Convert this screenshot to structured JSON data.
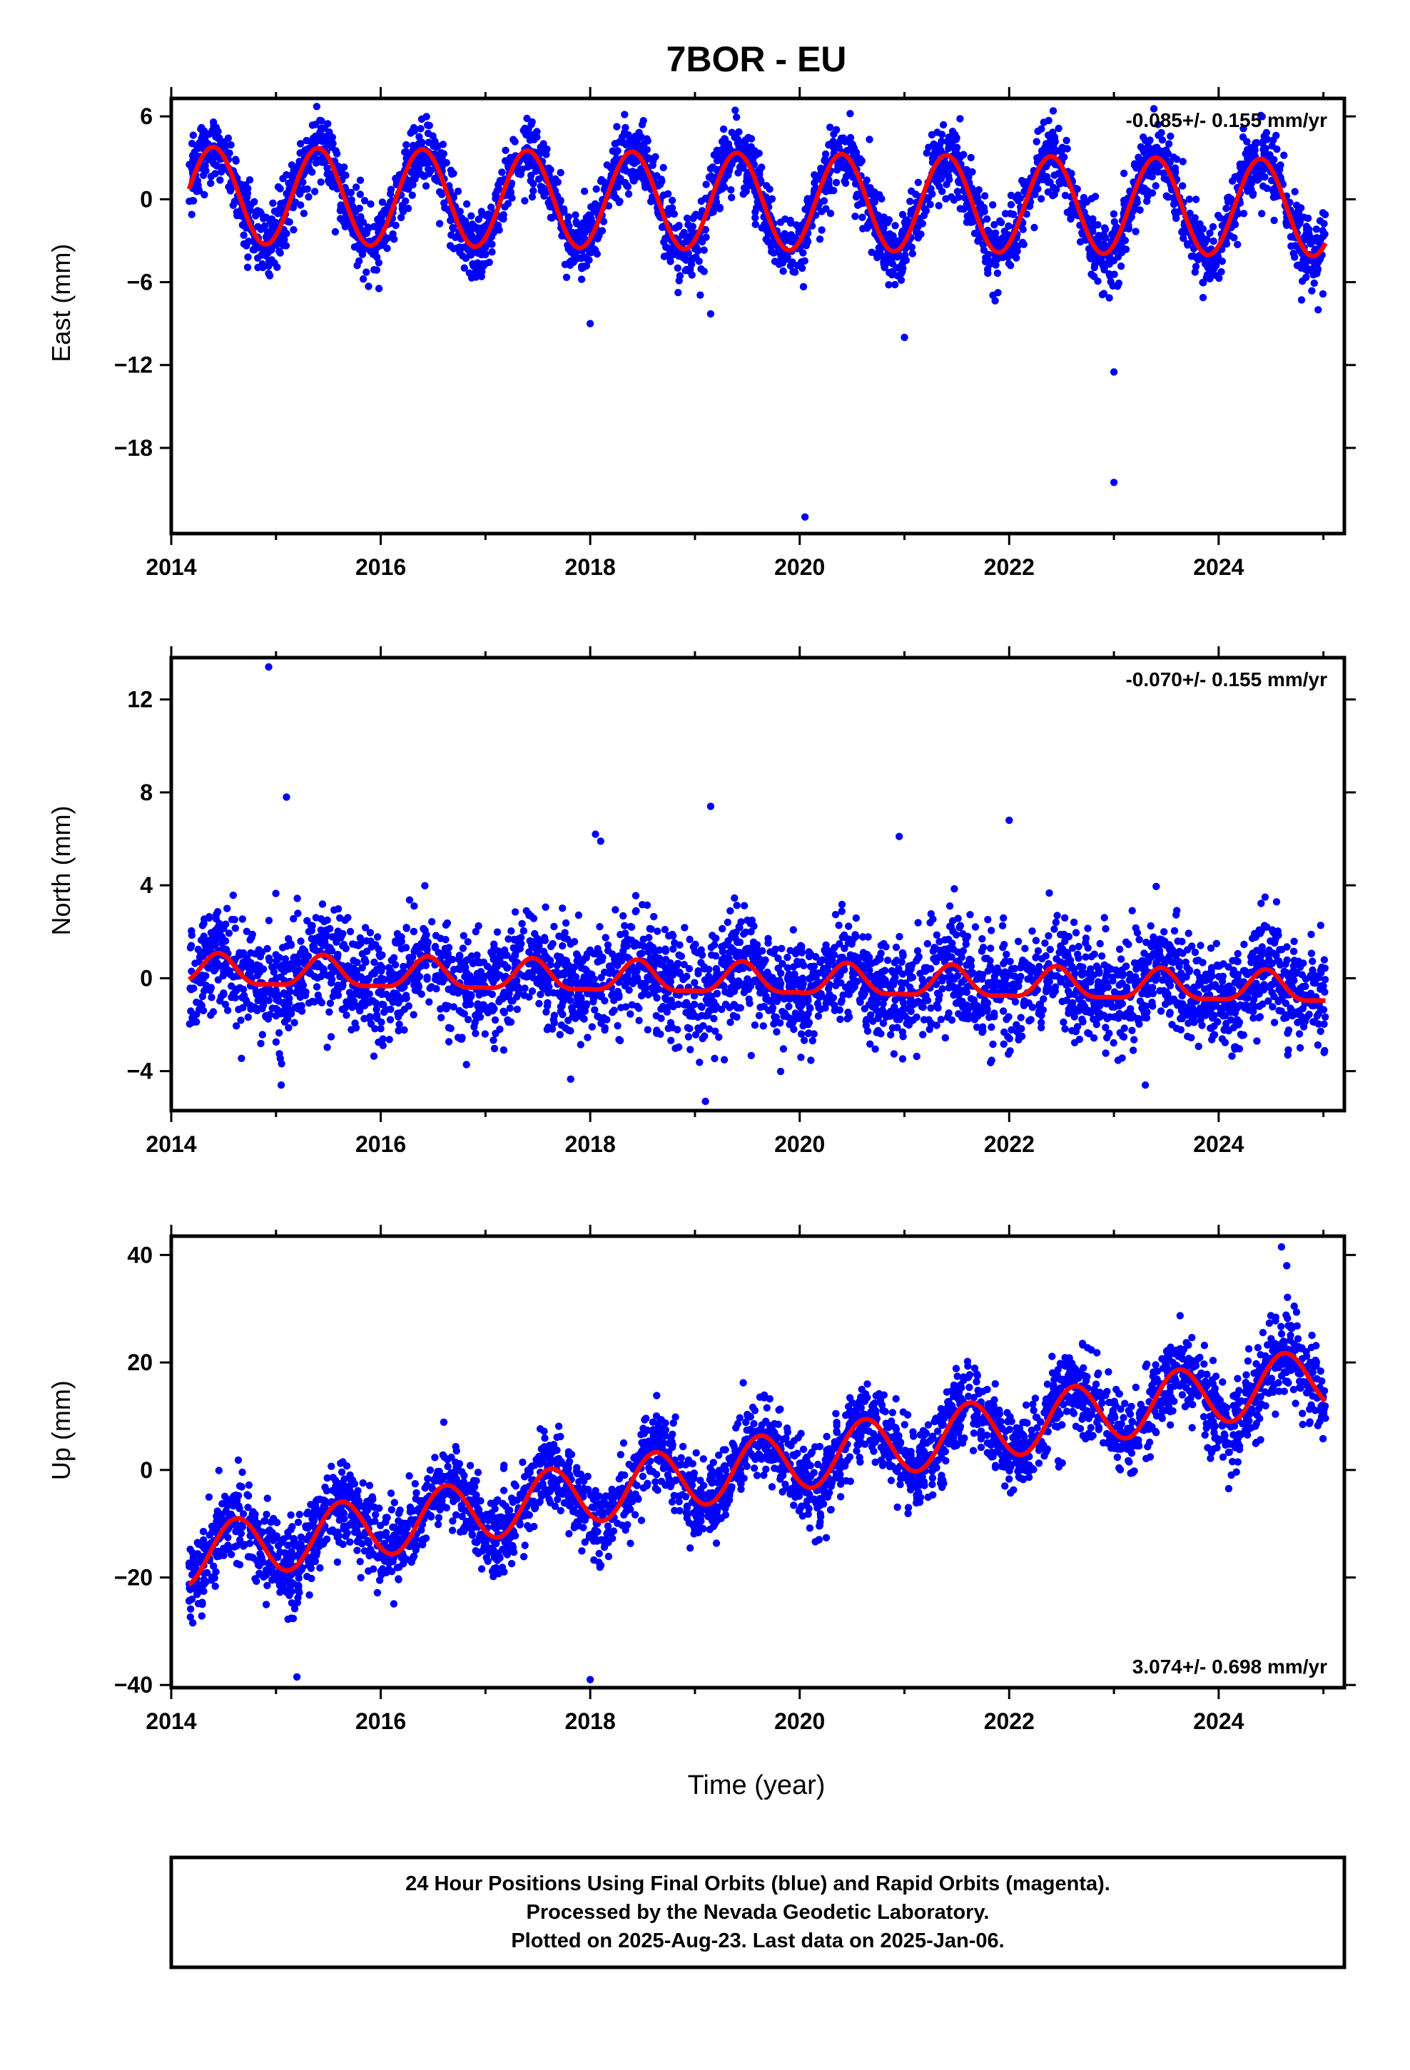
{
  "title": "7BOR - EU",
  "xlabel": "Time (year)",
  "footer": {
    "line1": "24 Hour Positions Using Final Orbits (blue) and Rapid Orbits (magenta).",
    "line2": "Processed by the Nevada Geodetic Laboratory.",
    "line3": "Plotted on 2025-Aug-23. Last data on 2025-Jan-06."
  },
  "colors": {
    "points": "#0000ff",
    "model": "#ff0000",
    "frame": "#000000"
  },
  "chart_data": [
    {
      "type": "scatter",
      "ylabel": "East (mm)",
      "rate_text": "-0.085+/- 0.155 mm/yr",
      "xlim": [
        2014.0,
        2025.2
      ],
      "ylim": [
        -24.2,
        7.3
      ],
      "xticks": [
        2014,
        2016,
        2018,
        2020,
        2022,
        2024
      ],
      "yticks": [
        6,
        0,
        -6,
        -12,
        -18
      ],
      "ytick_labels": [
        "6",
        "0",
        "−6",
        "−12",
        "−18"
      ],
      "model": {
        "offset": 0.3,
        "trend": -0.085,
        "amplitude": 3.5,
        "peak_phase": 0.4,
        "t0": 2014.17,
        "t1": 2025.02
      },
      "scatter": {
        "count": 3400,
        "noise_sd": 1.25
      },
      "outliers": [
        [
          2018.0,
          -9.0
        ],
        [
          2020.05,
          -23.0
        ],
        [
          2021.0,
          -10.0
        ],
        [
          2023.0,
          -12.5
        ],
        [
          2023.0,
          -20.5
        ],
        [
          2024.95,
          -8.0
        ],
        [
          2019.15,
          -8.3
        ]
      ]
    },
    {
      "type": "scatter",
      "ylabel": "North (mm)",
      "rate_text": "-0.070+/- 0.155 mm/yr",
      "xlim": [
        2014.0,
        2025.2
      ],
      "ylim": [
        -5.7,
        13.8
      ],
      "xticks": [
        2014,
        2016,
        2018,
        2020,
        2022,
        2024
      ],
      "yticks": [
        12,
        8,
        4,
        0,
        -4
      ],
      "ytick_labels": [
        "12",
        "8",
        "4",
        "0",
        "−4"
      ],
      "model": {
        "offset": 0.25,
        "trend": -0.07,
        "amplitude": 0.65,
        "peak_phase": 0.45,
        "semiannual": 0.2,
        "t0": 2014.17,
        "t1": 2025.02
      },
      "scatter": {
        "count": 3400,
        "noise_sd": 1.15
      },
      "outliers": [
        [
          2014.93,
          13.4
        ],
        [
          2015.1,
          7.8
        ],
        [
          2019.15,
          7.4
        ],
        [
          2020.95,
          6.1
        ],
        [
          2022.0,
          6.8
        ],
        [
          2018.05,
          6.2
        ],
        [
          2018.1,
          5.9
        ],
        [
          2023.3,
          -4.6
        ],
        [
          2015.05,
          -4.6
        ],
        [
          2019.1,
          -5.3
        ]
      ]
    },
    {
      "type": "scatter",
      "ylabel": "Up (mm)",
      "rate_text": "3.074+/- 0.698 mm/yr",
      "xlim": [
        2014.0,
        2025.2
      ],
      "ylim": [
        -40.5,
        43.5
      ],
      "xticks": [
        2014,
        2016,
        2018,
        2020,
        2022,
        2024
      ],
      "yticks": [
        40,
        20,
        0,
        -20,
        -40
      ],
      "ytick_labels": [
        "40",
        "20",
        "0",
        "−20",
        "−40"
      ],
      "model": {
        "offset": -16.0,
        "trend": 3.074,
        "amplitude": 5.6,
        "peak_phase": 0.62,
        "t0": 2014.17,
        "t1": 2025.02
      },
      "scatter": {
        "count": 3400,
        "noise_sd": 3.8
      },
      "outliers": [
        [
          2018.0,
          -39.0
        ],
        [
          2015.2,
          -38.5
        ],
        [
          2024.6,
          41.5
        ],
        [
          2024.65,
          38.0
        ]
      ]
    }
  ]
}
